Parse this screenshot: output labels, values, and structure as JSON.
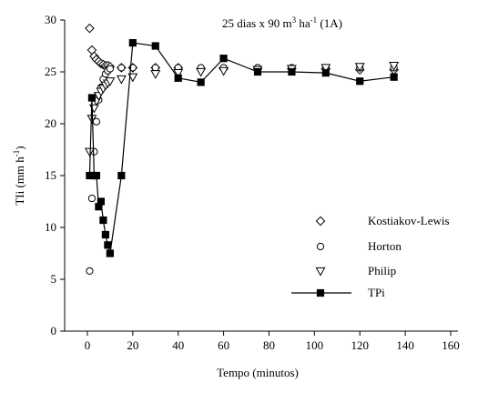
{
  "chart_data": {
    "type": "line",
    "title": [
      "25 dias x 90 m",
      "3",
      " ha",
      "-1",
      " (1A)"
    ],
    "x_label": "Tempo (minutos)",
    "y_label": [
      "TIi (mm h",
      "-1",
      ")"
    ],
    "x": [
      1,
      2,
      3,
      4,
      5,
      6,
      7,
      8,
      9,
      10,
      15,
      20,
      30,
      40,
      50,
      60,
      75,
      90,
      105,
      120,
      135
    ],
    "series": [
      {
        "name": "Kostiakov-Lewis",
        "color": "#000000",
        "marker": "diamond",
        "line": false,
        "values": [
          29.2,
          27.1,
          26.5,
          26.2,
          26,
          25.8,
          25.7,
          25.6,
          25.6,
          25.5,
          25.4,
          25.4,
          25.4,
          25.4,
          25.3,
          25.3,
          25.3,
          25.3,
          25.3,
          25.2,
          25.2
        ]
      },
      {
        "name": "Horton",
        "color": "#000000",
        "marker": "circle",
        "line": false,
        "values": [
          5.8,
          12.8,
          17.3,
          20.2,
          22.3,
          23.5,
          24.3,
          24.8,
          25.1,
          25.3,
          25.4,
          25.4,
          25.4,
          25.4,
          25.4,
          25.4,
          25.4,
          25.4,
          25.4,
          25.4,
          25.4
        ]
      },
      {
        "name": "Philip",
        "color": "#000000",
        "marker": "triangle-down",
        "line": false,
        "values": [
          17.3,
          20.5,
          21.5,
          22.2,
          22.7,
          23.1,
          23.4,
          23.7,
          23.9,
          24.1,
          24.3,
          24.5,
          24.8,
          24.9,
          25,
          25.1,
          25.2,
          25.3,
          25.4,
          25.5,
          25.6
        ]
      },
      {
        "name": "TPi",
        "color": "#000000",
        "marker": "square",
        "line": true,
        "values": [
          15,
          22.5,
          15,
          15,
          12,
          12.5,
          10.7,
          9.3,
          8.3,
          7.5,
          15,
          27.8,
          27.5,
          24.4,
          24,
          26.3,
          25,
          25,
          24.9,
          24.1,
          24.5
        ]
      }
    ],
    "xlim": [
      -10,
      160
    ],
    "xticks": [
      0,
      20,
      40,
      60,
      80,
      100,
      120,
      140,
      160
    ],
    "ylim": [
      0,
      30
    ],
    "yticks": [
      0,
      5,
      10,
      15,
      20,
      25,
      30
    ],
    "grid": false
  }
}
